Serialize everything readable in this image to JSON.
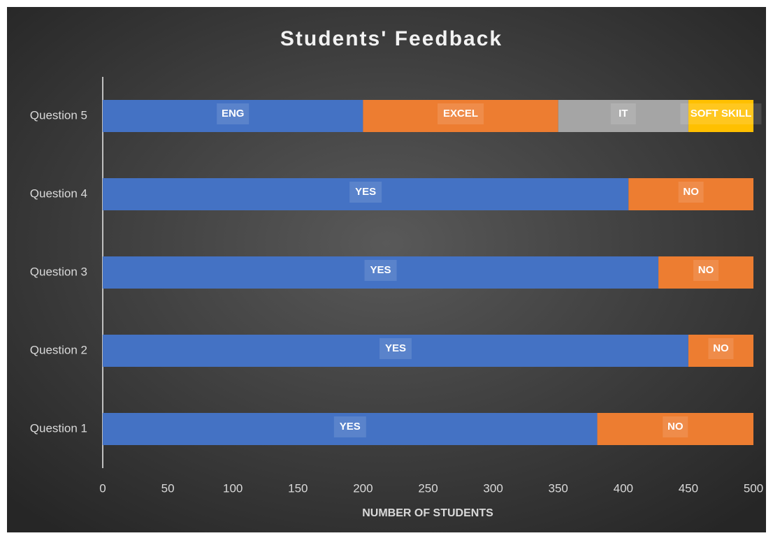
{
  "chart_data": {
    "type": "stacked_barh",
    "title": "Students' Feedback",
    "x_label": "NUMBER OF STUDENTS",
    "categories": [
      "Question 1",
      "Question 2",
      "Question 3",
      "Question 4",
      "Question 5"
    ],
    "series": [
      {
        "color": "#4472c4",
        "values": [
          380,
          450,
          427,
          404,
          200
        ],
        "labels": [
          "YES",
          "YES",
          "YES",
          "YES",
          "ENG"
        ]
      },
      {
        "color": "#ed7d31",
        "values": [
          120,
          50,
          73,
          96,
          150
        ],
        "labels": [
          "NO",
          "NO",
          "NO",
          "NO",
          "EXCEL"
        ]
      },
      {
        "color": "#a5a5a5",
        "values": [
          null,
          null,
          null,
          null,
          100
        ],
        "labels": [
          null,
          null,
          null,
          null,
          "IT"
        ]
      },
      {
        "color": "#ffc000",
        "values": [
          null,
          null,
          null,
          null,
          50
        ],
        "labels": [
          null,
          null,
          null,
          null,
          "SOFT SKILL"
        ]
      }
    ],
    "xlim": [
      0,
      500
    ],
    "xticks": [
      0,
      50,
      100,
      150,
      200,
      250,
      300,
      350,
      400,
      450,
      500
    ],
    "grid": false
  }
}
